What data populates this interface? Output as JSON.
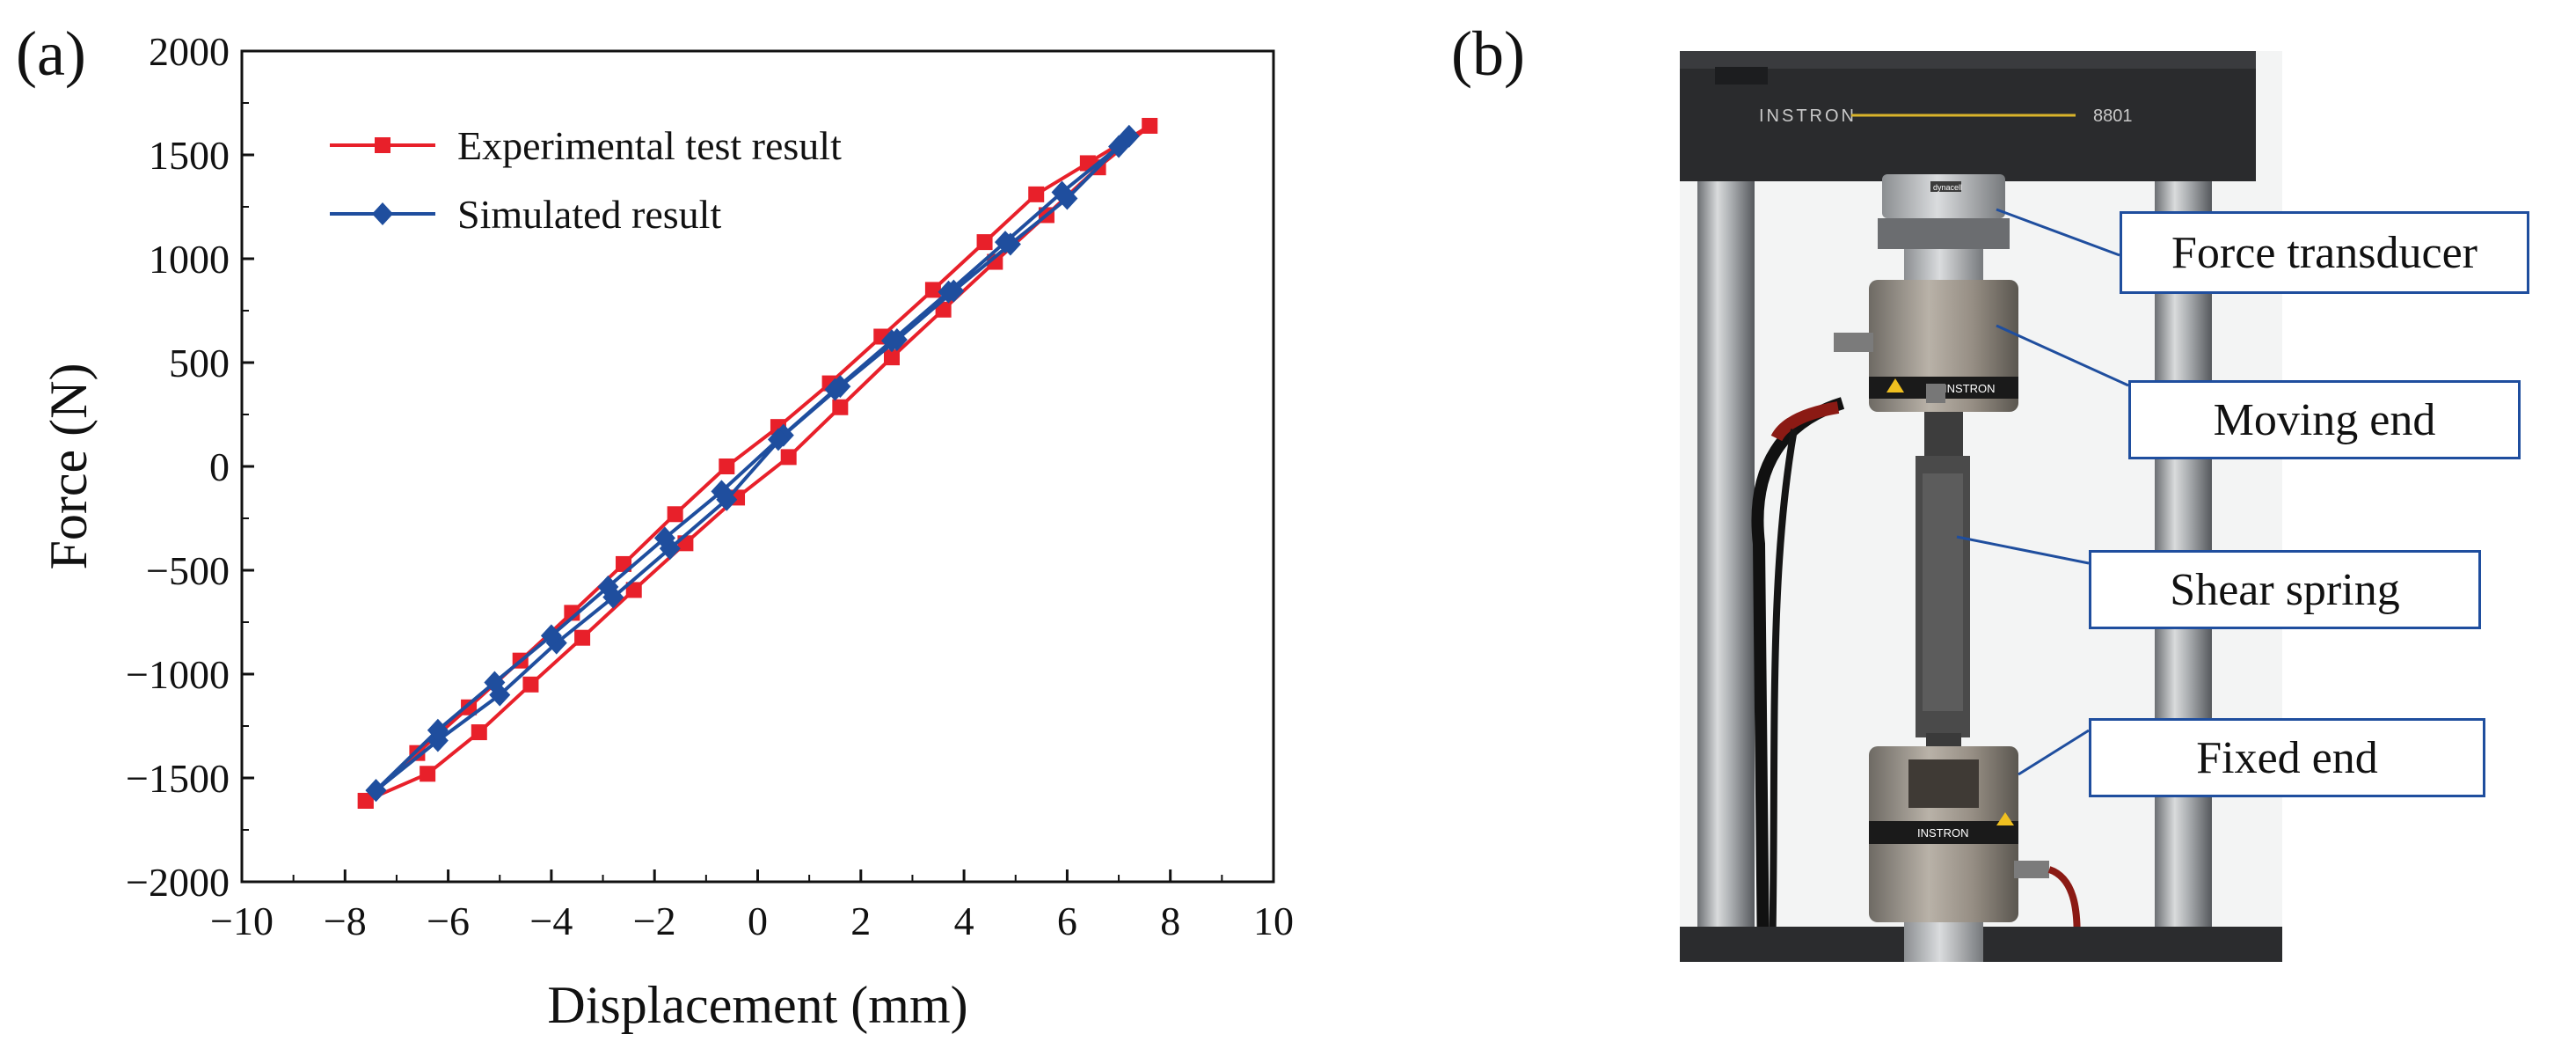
{
  "panel_a_label": "(a)",
  "panel_b_label": "(b)",
  "chart_data": {
    "type": "line",
    "title": "",
    "xlabel": "Displacement (mm)",
    "ylabel": "Force (N)",
    "xlim": [
      -10,
      10
    ],
    "ylim": [
      -2000,
      2000
    ],
    "xticks": [
      -10,
      -8,
      -6,
      -4,
      -2,
      0,
      2,
      4,
      6,
      8,
      10
    ],
    "yticks": [
      -2000,
      -1500,
      -1000,
      -500,
      0,
      500,
      1000,
      1500,
      2000
    ],
    "grid": false,
    "legend_position": "top-left",
    "series": [
      {
        "name": "Experimental test result",
        "color": "#e8202a",
        "marker": "square",
        "x": [
          -7.6,
          -6.6,
          -5.6,
          -4.6,
          -3.6,
          -2.6,
          -1.6,
          -0.6,
          0.4,
          1.4,
          2.4,
          3.4,
          4.4,
          5.4,
          6.4,
          7.6,
          6.6,
          5.6,
          4.6,
          3.6,
          2.6,
          1.6,
          0.6,
          -0.4,
          -1.4,
          -2.4,
          -3.4,
          -4.4,
          -5.4,
          -6.4,
          -7.6
        ],
        "y": [
          -1610,
          -1380,
          -1160,
          -935,
          -705,
          -470,
          -230,
          0,
          190,
          400,
          625,
          850,
          1080,
          1310,
          1460,
          1640,
          1440,
          1210,
          985,
          755,
          525,
          285,
          45,
          -150,
          -370,
          -595,
          -825,
          -1050,
          -1280,
          -1480,
          -1610
        ]
      },
      {
        "name": "Simulated result",
        "color": "#1f4e9e",
        "marker": "diamond",
        "x": [
          -7.4,
          -6.2,
          -5.0,
          -3.9,
          -2.8,
          -1.7,
          -0.6,
          0.5,
          1.6,
          2.7,
          3.8,
          4.9,
          6.0,
          7.2,
          7.0,
          5.9,
          4.8,
          3.7,
          2.6,
          1.5,
          0.4,
          -0.7,
          -1.8,
          -2.9,
          -4.0,
          -5.1,
          -6.2,
          -7.4
        ],
        "y": [
          -1560,
          -1320,
          -1100,
          -850,
          -630,
          -395,
          -160,
          150,
          385,
          610,
          845,
          1070,
          1290,
          1590,
          1540,
          1320,
          1080,
          840,
          605,
          370,
          130,
          -120,
          -345,
          -580,
          -815,
          -1040,
          -1270,
          -1560
        ]
      }
    ]
  },
  "photo": {
    "machine_brand": "INSTRON",
    "machine_model": "8801",
    "transducer_brand": "dynacell",
    "labels": {
      "force_transducer": "Force transducer",
      "moving_end": "Moving end",
      "shear_spring": "Shear spring",
      "fixed_end": "Fixed end"
    }
  },
  "colors": {
    "callout_border": "#1f4e9e",
    "experimental": "#e8202a",
    "simulated": "#1f4e9e"
  }
}
